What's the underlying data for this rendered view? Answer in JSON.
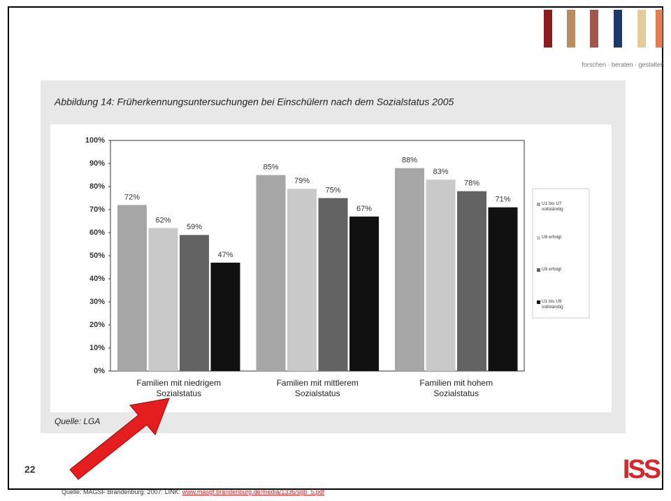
{
  "slide": {
    "tagline": "forschen · beraten · gestalten",
    "page_number": "22",
    "footer_source": "Quelle: MAGSF Brandenburg: 2007: LINK:",
    "footer_link": "www.masgf.brandenburg.de/media/1336/sgb_5.pdf",
    "logo_text": "ISS"
  },
  "chart_data": {
    "type": "bar",
    "title": "Abbildung 14:   Früherkennungsuntersuchungen bei Einschülern nach dem Sozialstatus 2005",
    "source": "Quelle: LGA",
    "categories": [
      "Familien mit niedrigem Sozialstatus",
      "Familien mit mittlerem Sozialstatus",
      "Familien mit hohem Sozialstatus"
    ],
    "series": [
      {
        "name": "U1 bis U7 vollständig",
        "color": "#a6a6a6",
        "values": [
          72,
          85,
          88
        ],
        "value_labels": [
          "72%",
          "85%",
          "88%"
        ]
      },
      {
        "name": "U8 erfolgt",
        "color": "#c9c9c9",
        "values": [
          62,
          79,
          83
        ],
        "value_labels": [
          "62%",
          "79%",
          "83%"
        ]
      },
      {
        "name": "U9 erfolgt",
        "color": "#636363",
        "values": [
          59,
          75,
          78
        ],
        "value_labels": [
          "59%",
          "75%",
          "78%"
        ]
      },
      {
        "name": "U1 bis U9 vollständig",
        "color": "#111111",
        "values": [
          47,
          67,
          71
        ],
        "value_labels": [
          "47%",
          "67%",
          "71%"
        ]
      }
    ],
    "ylim": [
      0,
      100
    ],
    "yticks": [
      {
        "value": 0,
        "label": "0%"
      },
      {
        "value": 10,
        "label": "10%"
      },
      {
        "value": 20,
        "label": "20%"
      },
      {
        "value": 30,
        "label": "30%"
      },
      {
        "value": 40,
        "label": "40%"
      },
      {
        "value": 50,
        "label": "50%"
      },
      {
        "value": 60,
        "label": "60%"
      },
      {
        "value": 70,
        "label": "70%"
      },
      {
        "value": 80,
        "label": "80%"
      },
      {
        "value": 90,
        "label": "90%"
      },
      {
        "value": 100,
        "label": "100%"
      }
    ],
    "legend": "right"
  }
}
